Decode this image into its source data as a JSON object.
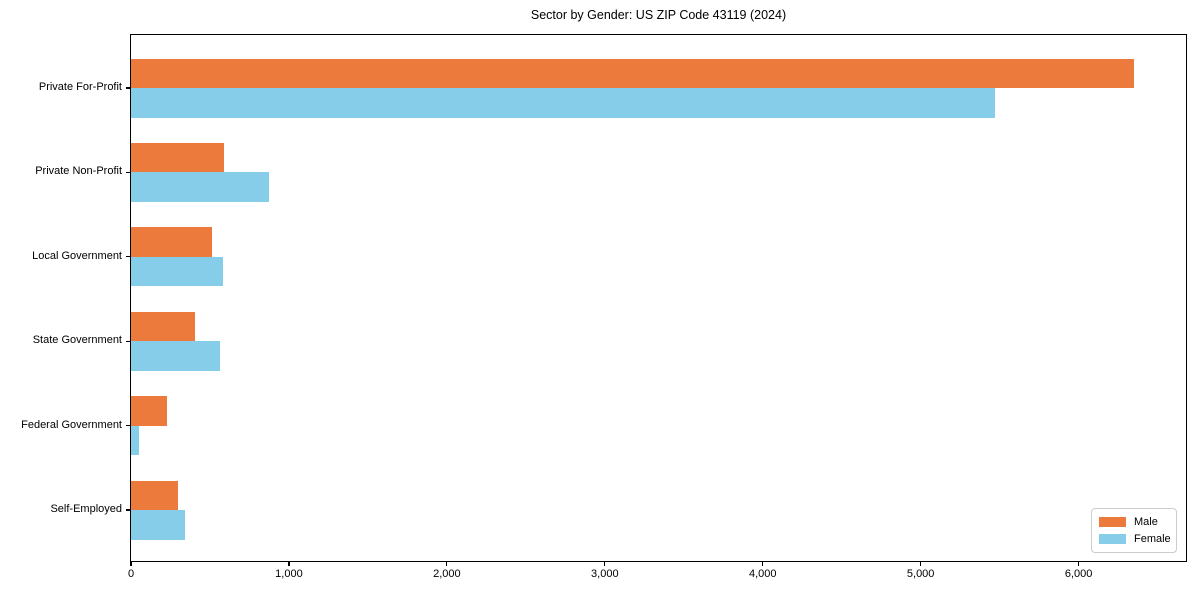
{
  "title": "Sector by Gender: US ZIP Code 43119 (2024)",
  "chart_data": {
    "type": "bar",
    "orientation": "horizontal",
    "title": "Sector by Gender: US ZIP Code 43119 (2024)",
    "categories": [
      "Private For-Profit",
      "Private Non-Profit",
      "Local Government",
      "State Government",
      "Federal Government",
      "Self-Employed"
    ],
    "series": [
      {
        "name": "Male",
        "color": "#eb7a3c",
        "values": [
          6350,
          590,
          510,
          405,
          230,
          300
        ]
      },
      {
        "name": "Female",
        "color": "#85cde8",
        "values": [
          5470,
          875,
          580,
          565,
          50,
          345
        ]
      }
    ],
    "xlabel": "",
    "ylabel": "",
    "xlim": [
      0,
      6680
    ],
    "xticks": [
      {
        "value": 0,
        "label": "0"
      },
      {
        "value": 1000,
        "label": "1,000"
      },
      {
        "value": 2000,
        "label": "2,000"
      },
      {
        "value": 3000,
        "label": "3,000"
      },
      {
        "value": 4000,
        "label": "4,000"
      },
      {
        "value": 5000,
        "label": "5,000"
      },
      {
        "value": 6000,
        "label": "6,000"
      }
    ],
    "grid": false,
    "legend_position": "lower right",
    "legend_entries": [
      "Male",
      "Female"
    ]
  }
}
